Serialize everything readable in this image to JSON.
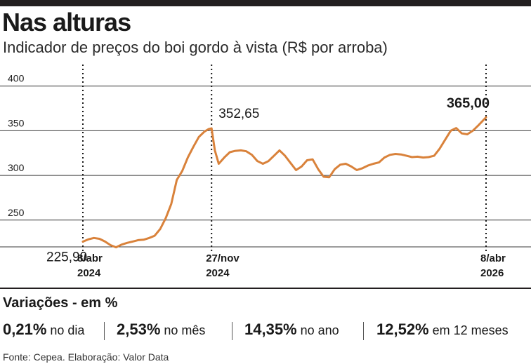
{
  "header": {
    "title": "Nas alturas",
    "subtitle": "Indicador de preços do boi gordo à vista (R$ por arroba)"
  },
  "chart_data": {
    "type": "line",
    "title": "",
    "xlabel": "",
    "ylabel": "",
    "ylim": [
      220,
      410
    ],
    "y_ticks": [
      "250",
      "300",
      "350",
      "400"
    ],
    "grid": "horizontal",
    "markers": [
      {
        "date": "2024-04-08",
        "label_top": "8/abr",
        "label_bottom": "2024"
      },
      {
        "date": "2024-11-27",
        "label_top": "27/nov",
        "label_bottom": "2024"
      },
      {
        "date": "2026-04-08",
        "label_top": "8/abr",
        "label_bottom": "2026"
      }
    ],
    "annotations": [
      {
        "date": "2024-04-08",
        "value": 225.9,
        "text": "225,90"
      },
      {
        "date": "2024-11-27",
        "value": 352.65,
        "text": "352,65"
      },
      {
        "date": "2026-04-08",
        "value": 365.0,
        "text": "365,00"
      }
    ],
    "series": [
      {
        "color": "#d9823b",
        "x": [
          "2024-04-08",
          "2024-04-18",
          "2024-04-28",
          "2024-05-08",
          "2024-05-18",
          "2024-05-28",
          "2024-06-07",
          "2024-06-17",
          "2024-06-27",
          "2024-07-07",
          "2024-07-17",
          "2024-07-27",
          "2024-08-06",
          "2024-08-16",
          "2024-08-26",
          "2024-09-05",
          "2024-09-15",
          "2024-09-25",
          "2024-10-05",
          "2024-10-15",
          "2024-10-25",
          "2024-11-04",
          "2024-11-14",
          "2024-11-22",
          "2024-11-27",
          "2024-12-03",
          "2024-12-10",
          "2024-12-20",
          "2024-12-30",
          "2025-01-09",
          "2025-01-19",
          "2025-01-29",
          "2025-02-08",
          "2025-02-18",
          "2025-02-28",
          "2025-03-10",
          "2025-03-20",
          "2025-03-30",
          "2025-04-09",
          "2025-04-19",
          "2025-04-29",
          "2025-05-09",
          "2025-05-19",
          "2025-05-29",
          "2025-06-08",
          "2025-06-18",
          "2025-06-28",
          "2025-07-08",
          "2025-07-18",
          "2025-07-28",
          "2025-08-07",
          "2025-08-17",
          "2025-08-27",
          "2025-09-06",
          "2025-09-16",
          "2025-09-26",
          "2025-10-06",
          "2025-10-16",
          "2025-10-26",
          "2025-11-05",
          "2025-11-15",
          "2025-11-25",
          "2025-12-05",
          "2025-12-15",
          "2025-12-25",
          "2026-01-04",
          "2026-01-14",
          "2026-01-24",
          "2026-02-03",
          "2026-02-13",
          "2026-02-23",
          "2026-03-05",
          "2026-03-15",
          "2026-03-25",
          "2026-04-08"
        ],
        "values": [
          225.9,
          228.5,
          230.0,
          229.0,
          226.0,
          222.0,
          219.5,
          222.5,
          224.5,
          226.0,
          227.5,
          228.0,
          230.0,
          232.5,
          240.0,
          252.0,
          268.0,
          295.0,
          305.0,
          320.0,
          332.0,
          343.0,
          349.0,
          352.0,
          352.65,
          328.0,
          313.0,
          320.0,
          326.0,
          327.5,
          328.0,
          327.0,
          323.0,
          316.0,
          313.0,
          316.0,
          322.0,
          328.0,
          322.0,
          314.0,
          306.0,
          310.0,
          317.0,
          318.0,
          307.0,
          298.5,
          298.0,
          307.0,
          312.0,
          313.0,
          310.0,
          306.0,
          308.0,
          311.0,
          313.0,
          314.5,
          320.0,
          323.0,
          324.0,
          323.5,
          322.0,
          320.5,
          321.0,
          320.0,
          320.5,
          322.0,
          330.0,
          340.0,
          350.0,
          353.0,
          347.0,
          346.0,
          350.0,
          356.0,
          365.0
        ]
      }
    ]
  },
  "variacoes": {
    "title": "Variações - em %",
    "items": [
      {
        "value": "0,21%",
        "label": "no dia"
      },
      {
        "value": "2,53%",
        "label": "no mês"
      },
      {
        "value": "14,35%",
        "label": "no ano"
      },
      {
        "value": "12,52%",
        "label": "em 12 meses"
      }
    ]
  },
  "source": "Fonte: Cepea. Elaboração: Valor Data"
}
